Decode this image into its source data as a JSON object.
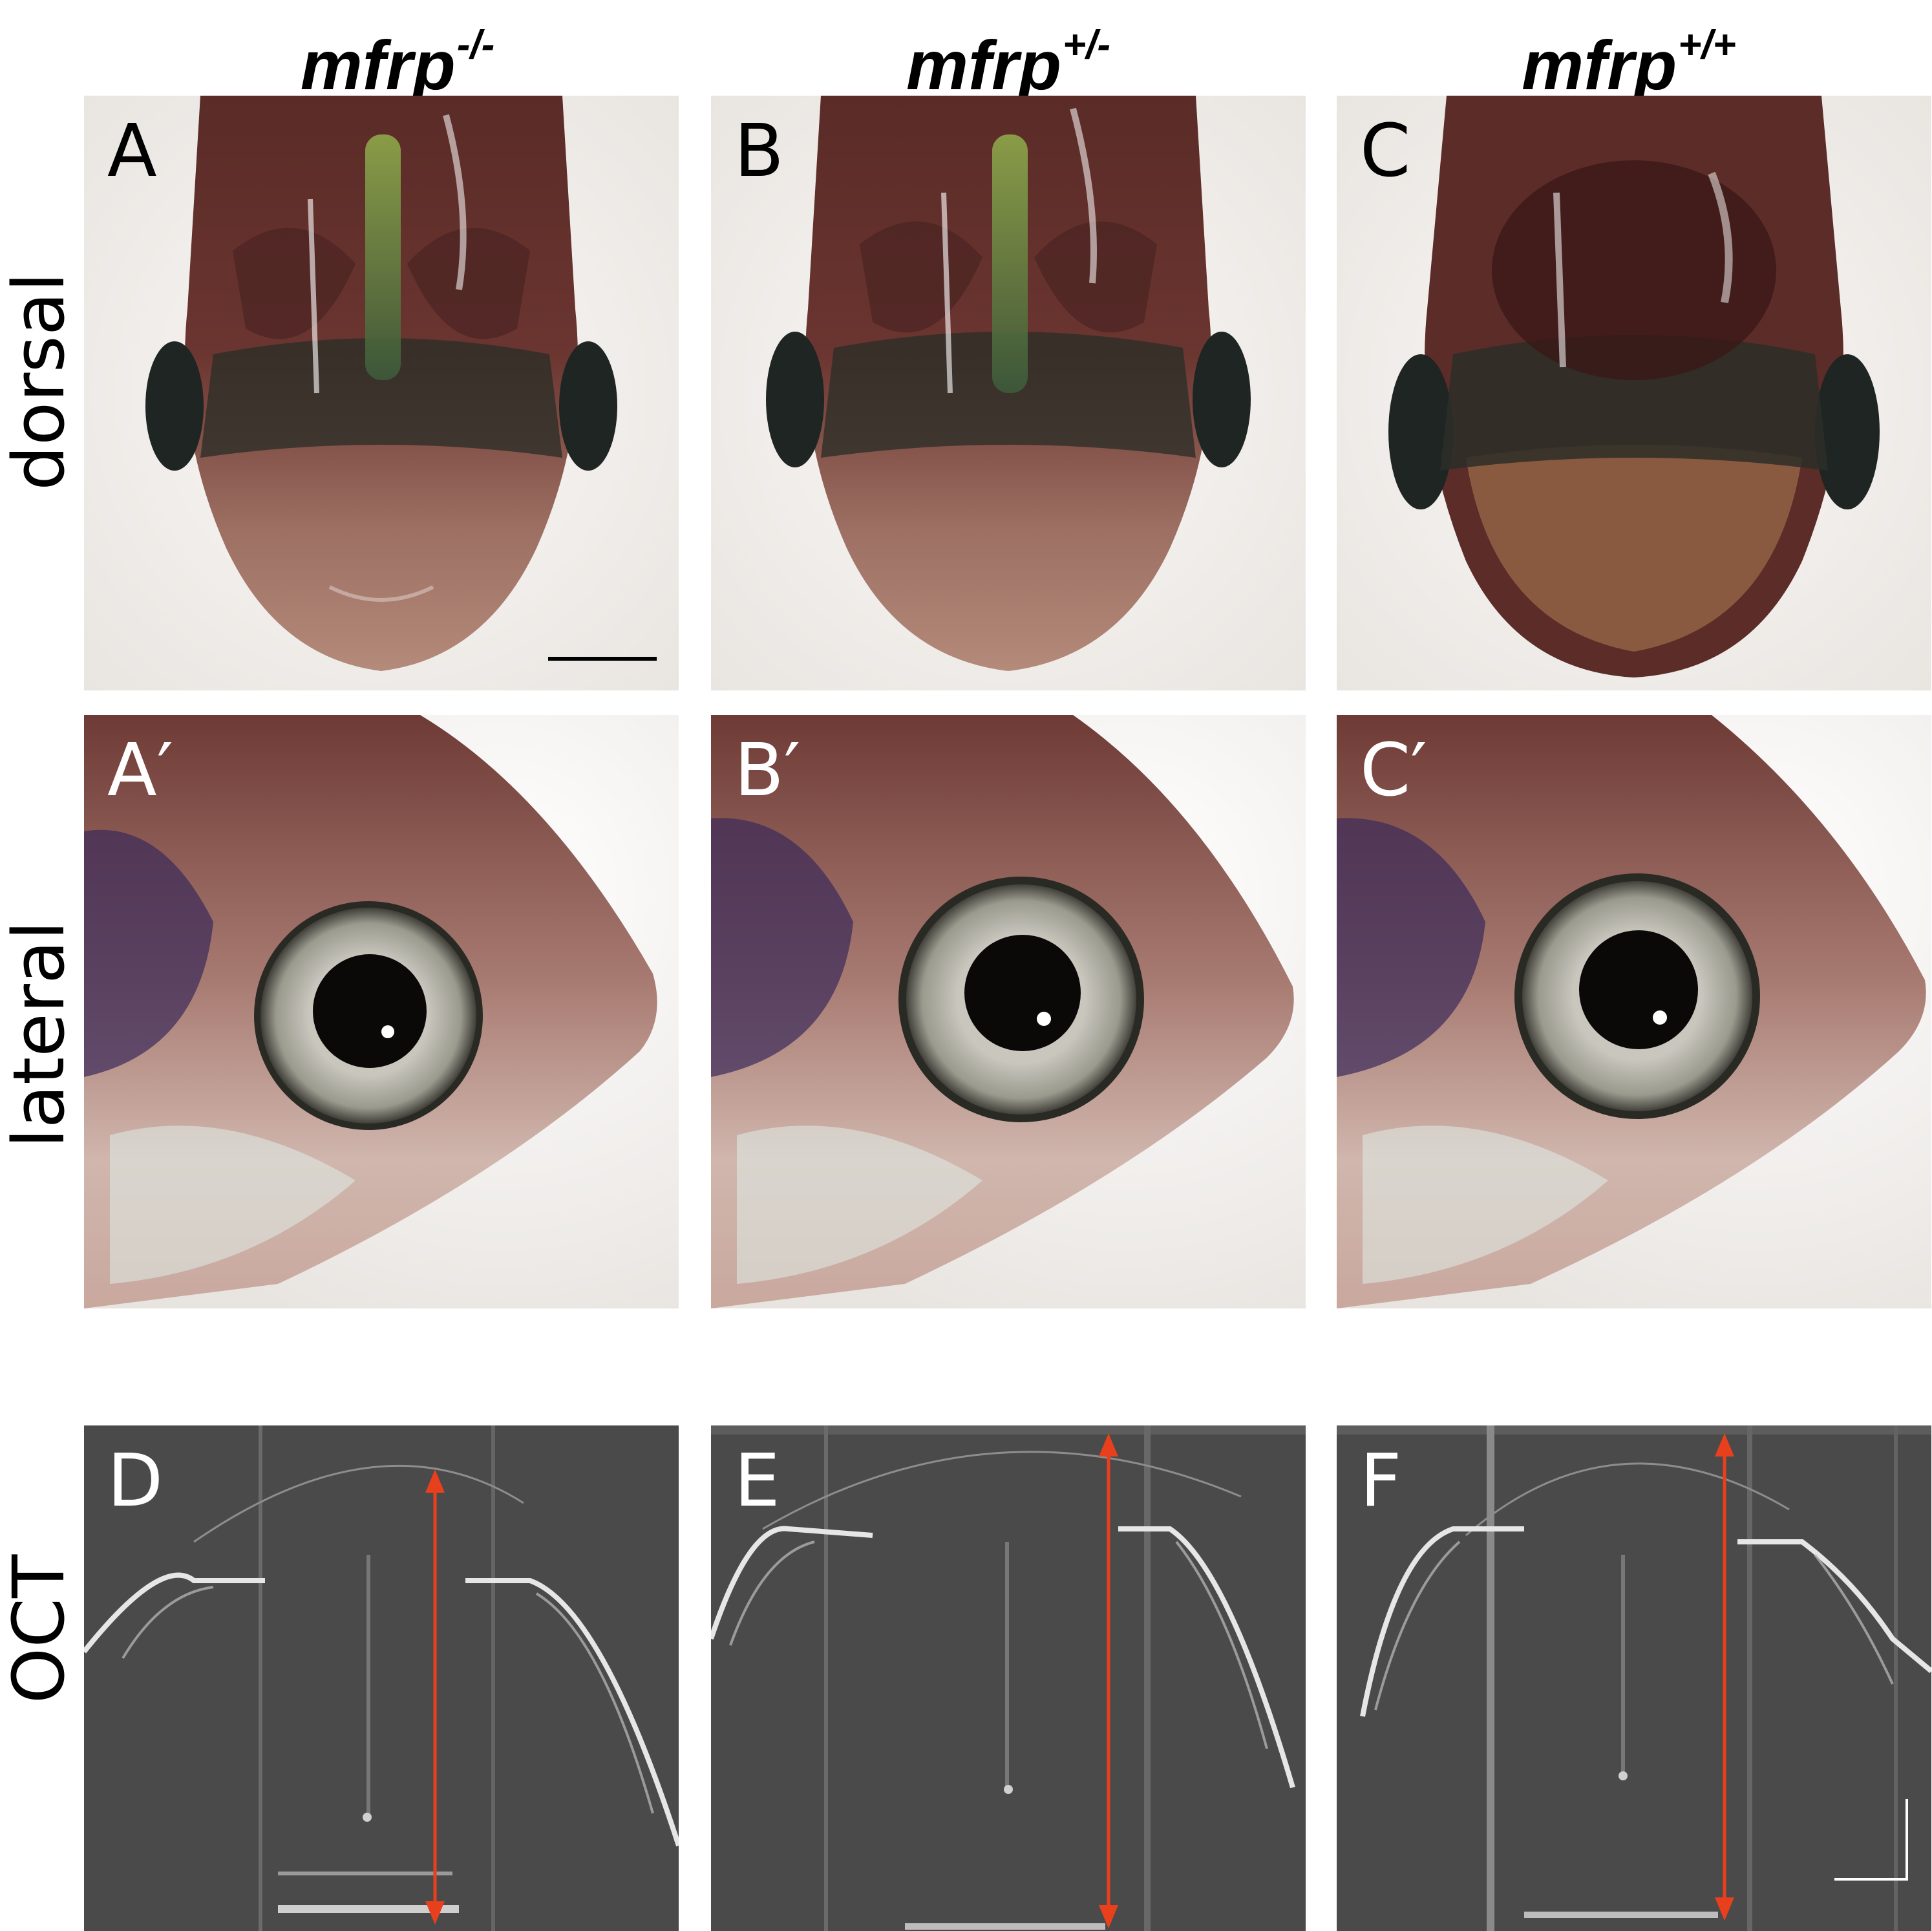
{
  "columns": [
    {
      "gene": "mfrp",
      "genotype": "-/-"
    },
    {
      "gene": "mfrp",
      "genotype": "+/-"
    },
    {
      "gene": "mfrp",
      "genotype": "+/+"
    }
  ],
  "rows": {
    "dorsal": "dorsal",
    "lateral": "lateral",
    "oct": "OCT"
  },
  "panels": {
    "dorsal": [
      "A",
      "B",
      "C"
    ],
    "lateral": [
      "A′",
      "B′",
      "C′"
    ],
    "oct": [
      "D",
      "E",
      "F"
    ]
  },
  "colors": {
    "arrow": "#e8401c",
    "oct_background": "#4a4a4a",
    "photo_background": "#f2f0ee"
  }
}
